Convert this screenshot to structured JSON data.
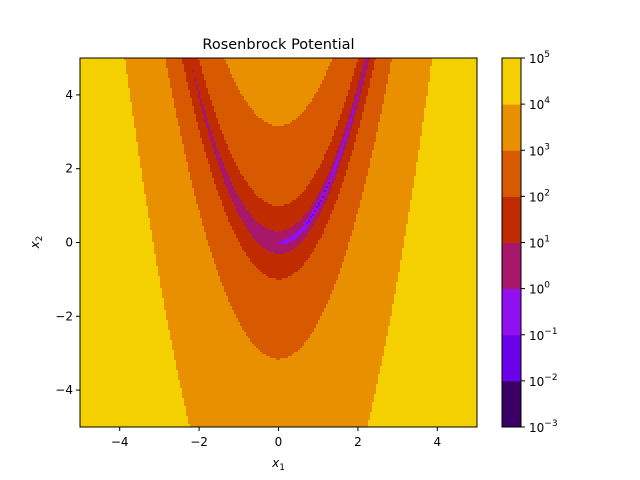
{
  "chart_data": {
    "type": "contour",
    "title": "Rosenbrock Potential",
    "xlabel": {
      "base": "x",
      "sub": "1"
    },
    "ylabel": {
      "base": "x",
      "sub": "2"
    },
    "function": "rosenbrock",
    "a": 1,
    "b": 100,
    "xlim": [
      -5,
      5
    ],
    "ylim": [
      -5,
      5
    ],
    "x_ticks": [
      {
        "value": -4,
        "label": "−4"
      },
      {
        "value": -2,
        "label": "−2"
      },
      {
        "value": 0,
        "label": "0"
      },
      {
        "value": 2,
        "label": "2"
      },
      {
        "value": 4,
        "label": "4"
      }
    ],
    "y_ticks": [
      {
        "value": -4,
        "label": "−4"
      },
      {
        "value": -2,
        "label": "−2"
      },
      {
        "value": 0,
        "label": "0"
      },
      {
        "value": 2,
        "label": "2"
      },
      {
        "value": 4,
        "label": "4"
      }
    ],
    "levels": [
      {
        "exponent": "-3",
        "value": 0.001
      },
      {
        "exponent": "-2",
        "value": 0.01
      },
      {
        "exponent": "-1",
        "value": 0.1
      },
      {
        "exponent": "0",
        "value": 1
      },
      {
        "exponent": "1",
        "value": 10
      },
      {
        "exponent": "2",
        "value": 100
      },
      {
        "exponent": "3",
        "value": 1000
      },
      {
        "exponent": "4",
        "value": 10000
      },
      {
        "exponent": "5",
        "value": 100000
      }
    ],
    "colorbar_base": "10",
    "band_colors": [
      "#3a0066",
      "#6b00eb",
      "#9010f0",
      "#a8186a",
      "#c02c00",
      "#d85a00",
      "#e89000",
      "#f5d000"
    ]
  }
}
